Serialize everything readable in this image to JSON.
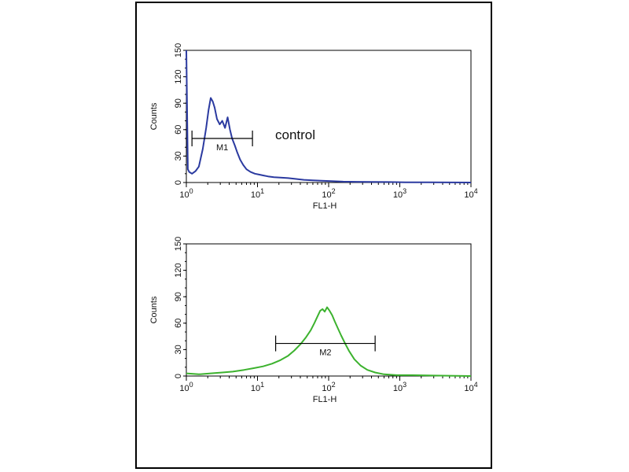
{
  "chart_data": [
    {
      "type": "line",
      "ylabel": "Counts",
      "xlabel": "FL1-H",
      "x_scale": "log",
      "xlim": [
        1,
        10000
      ],
      "ylim": [
        0,
        150
      ],
      "yticks": [
        "0",
        "30",
        "60",
        "90",
        "120",
        "150"
      ],
      "xticks": [
        {
          "value": 1,
          "base": "10",
          "exp": "0"
        },
        {
          "value": 10,
          "base": "10",
          "exp": "1"
        },
        {
          "value": 100,
          "base": "10",
          "exp": "2"
        },
        {
          "value": 1000,
          "base": "10",
          "exp": "3"
        },
        {
          "value": 10000,
          "base": "10",
          "exp": "4"
        }
      ],
      "color": "#2b3aa0",
      "annotation": "control",
      "marker": {
        "label": "M1",
        "x_start": 1.2,
        "x_end": 8.5,
        "y": 50
      },
      "series": [
        {
          "x": [
            1.0,
            1.05,
            1.1,
            1.2,
            1.35,
            1.5,
            1.7,
            1.9,
            2.05,
            2.2,
            2.35,
            2.5,
            2.7,
            2.95,
            3.2,
            3.5,
            3.8,
            4.1,
            4.4,
            4.8,
            5.2,
            5.7,
            6.3,
            7.0,
            8.0,
            9.2,
            10.5,
            12,
            14,
            17,
            21,
            27,
            35,
            45,
            60,
            80,
            110,
            160,
            250,
            400,
            700,
            1200,
            2500,
            5000,
            10000
          ],
          "y": [
            150,
            15,
            12,
            10,
            13,
            18,
            38,
            62,
            82,
            96,
            92,
            85,
            72,
            66,
            70,
            62,
            74,
            60,
            50,
            42,
            34,
            26,
            20,
            15,
            12,
            10,
            9,
            8,
            7,
            6,
            5.5,
            5,
            4,
            3,
            2.5,
            2,
            1.5,
            1,
            0.8,
            0.6,
            0.5,
            0.3,
            0.2,
            0.1,
            0
          ]
        }
      ]
    },
    {
      "type": "line",
      "ylabel": "Counts",
      "xlabel": "FL1-H",
      "x_scale": "log",
      "xlim": [
        1,
        10000
      ],
      "ylim": [
        0,
        150
      ],
      "yticks": [
        "0",
        "30",
        "60",
        "90",
        "120",
        "150"
      ],
      "xticks": [
        {
          "value": 1,
          "base": "10",
          "exp": "0"
        },
        {
          "value": 10,
          "base": "10",
          "exp": "1"
        },
        {
          "value": 100,
          "base": "10",
          "exp": "2"
        },
        {
          "value": 1000,
          "base": "10",
          "exp": "3"
        },
        {
          "value": 10000,
          "base": "10",
          "exp": "4"
        }
      ],
      "color": "#3cb22e",
      "marker": {
        "label": "M2",
        "x_start": 18,
        "x_end": 450,
        "y": 37
      },
      "series": [
        {
          "x": [
            1.0,
            1.5,
            2.2,
            3.2,
            4.5,
            6.5,
            9.0,
            12,
            16,
            21,
            27,
            33,
            40,
            48,
            56,
            63,
            70,
            76,
            82,
            88,
            95,
            103,
            112,
            122,
            135,
            150,
            170,
            195,
            230,
            280,
            350,
            450,
            600,
            900,
            1500,
            3000,
            10000
          ],
          "y": [
            3,
            2,
            3,
            4,
            5,
            7,
            9,
            11,
            14,
            18,
            23,
            29,
            36,
            44,
            52,
            60,
            68,
            74,
            76,
            73,
            78,
            74,
            69,
            62,
            54,
            46,
            37,
            28,
            19,
            12,
            7,
            4,
            2,
            1,
            1,
            0.5,
            0
          ]
        }
      ]
    }
  ]
}
